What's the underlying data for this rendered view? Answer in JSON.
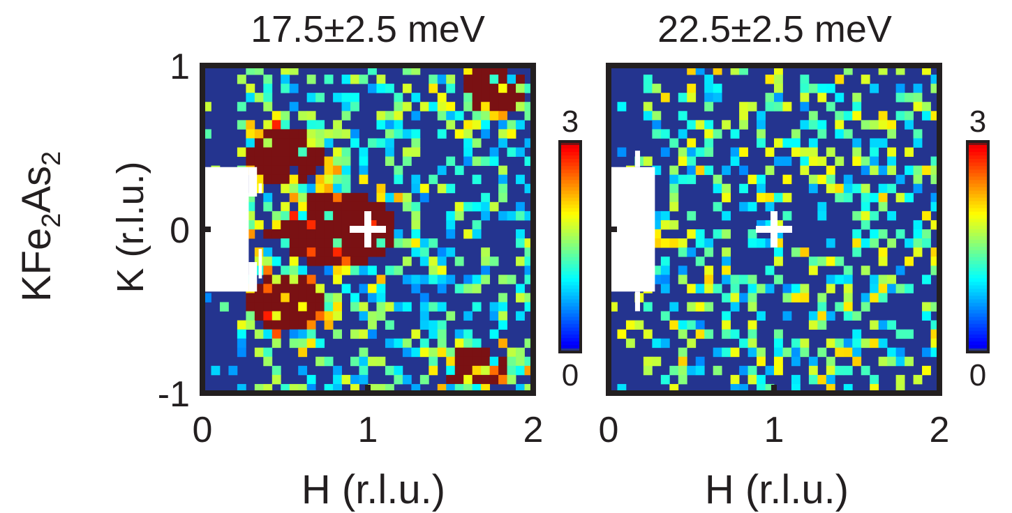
{
  "figure": {
    "row_label": {
      "parts": [
        "KFe",
        "2",
        "As",
        "2"
      ]
    }
  },
  "chart_data": [
    {
      "type": "heatmap",
      "title": "17.5±2.5 meV",
      "xlabel": "H (r.l.u.)",
      "ylabel": "K (r.l.u.)",
      "xlim": [
        0,
        2
      ],
      "ylim": [
        -1,
        1
      ],
      "xticks": [
        "0",
        "1",
        "2"
      ],
      "yticks": [
        "-1",
        "0",
        "1"
      ],
      "colorbar": {
        "min": 0,
        "max": 3,
        "min_label": "0",
        "max_label": "3",
        "colormap": "jet"
      },
      "grid": "38x36 cells",
      "seed": 1742,
      "masked_regions": [
        {
          "h": [
            0.0,
            0.28
          ],
          "k": [
            -0.38,
            0.38
          ]
        },
        {
          "h": [
            0.28,
            0.33
          ],
          "k": [
            0.2,
            0.38
          ]
        },
        {
          "h": [
            0.28,
            0.33
          ],
          "k": [
            -0.38,
            -0.2
          ]
        },
        {
          "h": [
            0.34,
            0.36
          ],
          "k": [
            0.22,
            0.28
          ]
        },
        {
          "h": [
            0.34,
            0.36
          ],
          "k": [
            -0.3,
            -0.12
          ]
        }
      ],
      "hot_zones": [
        {
          "h": 0.8,
          "k": 0.0,
          "rh": 0.55,
          "rk": 0.35
        },
        {
          "h": 0.5,
          "k": 0.45,
          "rh": 0.35,
          "rk": 0.25
        },
        {
          "h": 0.5,
          "k": -0.45,
          "rh": 0.35,
          "rk": 0.25
        },
        {
          "h": 1.75,
          "k": 0.85,
          "rh": 0.3,
          "rk": 0.22
        },
        {
          "h": 1.65,
          "k": -0.85,
          "rh": 0.3,
          "rk": 0.18
        }
      ],
      "background_level": 0.6,
      "marker": {
        "h": 1,
        "k": 0,
        "symbol": "+"
      }
    },
    {
      "type": "heatmap",
      "title": "22.5±2.5 meV",
      "xlabel": "H (r.l.u.)",
      "ylabel": "",
      "xlim": [
        0,
        2
      ],
      "ylim": [
        -1,
        1
      ],
      "xticks": [
        "0",
        "1",
        "2"
      ],
      "yticks": [],
      "colorbar": {
        "min": 0,
        "max": 3,
        "min_label": "0",
        "max_label": "3",
        "colormap": "jet"
      },
      "grid": "38x36 cells",
      "seed": 2256,
      "masked_regions": [
        {
          "h": [
            0.0,
            0.28
          ],
          "k": [
            -0.38,
            0.38
          ]
        },
        {
          "h": [
            0.16,
            0.19
          ],
          "k": [
            0.38,
            0.48
          ]
        },
        {
          "h": [
            0.16,
            0.19
          ],
          "k": [
            -0.5,
            -0.38
          ]
        }
      ],
      "hot_zones": [],
      "background_level": 0.7,
      "marker": {
        "h": 1,
        "k": 0,
        "symbol": "+"
      }
    }
  ]
}
